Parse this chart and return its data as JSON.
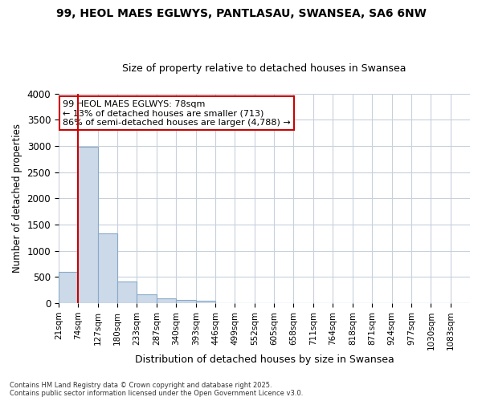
{
  "title1": "99, HEOL MAES EGLWYS, PANTLASAU, SWANSEA, SA6 6NW",
  "title2": "Size of property relative to detached houses in Swansea",
  "xlabel": "Distribution of detached houses by size in Swansea",
  "ylabel": "Number of detached properties",
  "bar_color": "#ccd9e8",
  "bar_edge_color": "#88aac8",
  "grid_color": "#c8d0dc",
  "background_color": "#ffffff",
  "fig_background_color": "#ffffff",
  "annotation_text_line1": "99 HEOL MAES EGLWYS: 78sqm",
  "annotation_text_line2": "← 13% of detached houses are smaller (713)",
  "annotation_text_line3": "86% of semi-detached houses are larger (4,788) →",
  "vline_color": "#cc0000",
  "categories": [
    "21sqm",
    "74sqm",
    "127sqm",
    "180sqm",
    "233sqm",
    "287sqm",
    "340sqm",
    "393sqm",
    "446sqm",
    "499sqm",
    "552sqm",
    "605sqm",
    "658sqm",
    "711sqm",
    "764sqm",
    "818sqm",
    "871sqm",
    "924sqm",
    "977sqm",
    "1030sqm",
    "1083sqm"
  ],
  "bin_edges": [
    21,
    74,
    127,
    180,
    233,
    287,
    340,
    393,
    446,
    499,
    552,
    605,
    658,
    711,
    764,
    818,
    871,
    924,
    977,
    1030,
    1083
  ],
  "values": [
    600,
    2980,
    1330,
    420,
    175,
    100,
    60,
    40,
    5,
    0,
    0,
    0,
    0,
    0,
    0,
    0,
    0,
    0,
    0,
    0,
    0
  ],
  "vline_x_bin": 1,
  "ylim": [
    0,
    4000
  ],
  "yticks": [
    0,
    500,
    1000,
    1500,
    2000,
    2500,
    3000,
    3500,
    4000
  ],
  "footer1": "Contains HM Land Registry data © Crown copyright and database right 2025.",
  "footer2": "Contains public sector information licensed under the Open Government Licence v3.0."
}
